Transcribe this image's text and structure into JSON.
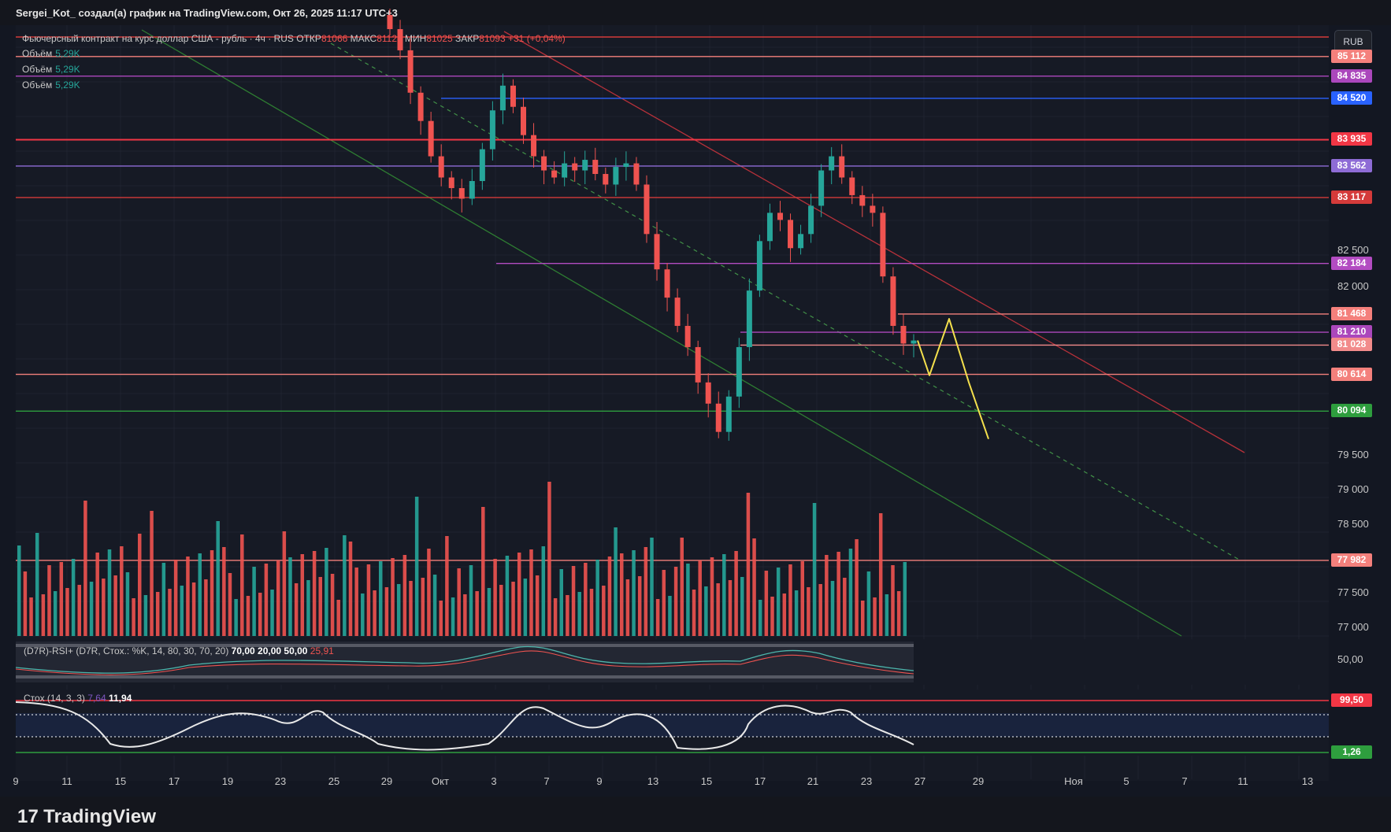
{
  "header": {
    "attribution": "Sergei_Kot_ создал(а) график на TradingView.com, Окт 26, 2025 11:17 UTC+3"
  },
  "currency_button": "RUB",
  "legend": {
    "title": "Фьючерсный контракт на курс доллар США - рубль · 4ч · RUS",
    "open_label": "ОТКР",
    "open_value": "81066",
    "high_label": "МАКС",
    "high_value": "81128",
    "low_label": "МИН",
    "low_value": "81025",
    "close_label": "ЗАКР",
    "close_value": "81093",
    "change": "+31 (+0,04%)",
    "volume_rows": [
      {
        "label": "Объём",
        "value": "5,29K"
      },
      {
        "label": "Объём",
        "value": "5,29K"
      },
      {
        "label": "Объём",
        "value": "5,29K"
      }
    ]
  },
  "indicators": {
    "rsi_label": "(D7R)-RSI+ (D7R, Стох.: %K, 14, 80, 30, 70, 20)",
    "rsi_values": [
      "70,00",
      "20,00",
      "50,00",
      "25,91"
    ],
    "rsi_axis_value": "50,00",
    "stoch_label": "Стох (14, 3, 3)",
    "stoch_values": [
      "7,64",
      "11,94"
    ],
    "stoch_upper_badge": "99,50",
    "stoch_lower_badge": "1,26"
  },
  "price_axis": {
    "ticks": [
      "82 500",
      "82 000",
      "79 500",
      "79 000",
      "78 500",
      "77 500",
      "77 000"
    ]
  },
  "levels": [
    {
      "price": 85112,
      "label": "85 112",
      "color": "#f4807c"
    },
    {
      "price": 84835,
      "label": "84 835",
      "color": "#ab47bc"
    },
    {
      "price": 84520,
      "label": "84 520",
      "color": "#2962ff"
    },
    {
      "price": 83935,
      "label": "83 935",
      "color": "#f23645"
    },
    {
      "price": 83562,
      "label": "83 562",
      "color": "#8e6cd6"
    },
    {
      "price": 83117,
      "label": "83 117",
      "color": "#d43a3a"
    },
    {
      "price": 82184,
      "label": "82 184",
      "color": "#b34cc2"
    },
    {
      "price": 81468,
      "label": "81 468",
      "color": "#f4807c"
    },
    {
      "price": 81210,
      "label": "81 210",
      "color": "#ab47bc"
    },
    {
      "price": 81028,
      "label": "81 028",
      "color": "#f28b8b"
    },
    {
      "price": 80614,
      "label": "80 614",
      "color": "#f4807c"
    },
    {
      "price": 80094,
      "label": "80 094",
      "color": "#2e9e3e"
    },
    {
      "price": 77982,
      "label": "77 982",
      "color": "#f4807c"
    }
  ],
  "x_axis": {
    "ticks": [
      "9",
      "11",
      "15",
      "17",
      "19",
      "23",
      "25",
      "29",
      "Окт",
      "3",
      "7",
      "9",
      "13",
      "15",
      "17",
      "21",
      "23",
      "27",
      "29",
      "Ноя",
      "5",
      "7",
      "11",
      "13"
    ]
  },
  "footer": {
    "brand": "TradingView"
  },
  "chart_data": {
    "type": "candlestick",
    "symbol": "Фьючерсный контракт на курс доллар США - рубль",
    "timeframe": "4ч",
    "ylim": [
      76800,
      85600
    ],
    "price_closes_approx": [
      85500,
      85200,
      84600,
      84200,
      83700,
      83400,
      83250,
      83100,
      83350,
      83800,
      84350,
      84700,
      84400,
      84000,
      83700,
      83500,
      83400,
      83600,
      83500,
      83650,
      83450,
      83300,
      83550,
      83600,
      83300,
      82600,
      82100,
      81700,
      81300,
      81000,
      80500,
      80200,
      79800,
      80300,
      81000,
      81800,
      82500,
      82900,
      82800,
      82400,
      82600,
      83000,
      83500,
      83700,
      83400,
      83150,
      83000,
      82900,
      82000,
      81300,
      81050,
      81093
    ],
    "forecast_path_approx": [
      81093,
      80600,
      81400,
      80500,
      79700
    ]
  }
}
